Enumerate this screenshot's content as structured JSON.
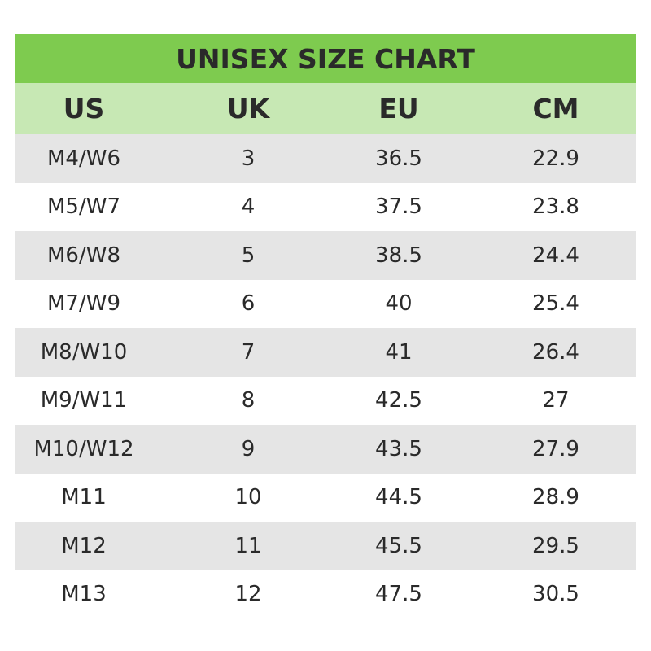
{
  "table": {
    "title": "UNISEX SIZE CHART",
    "columns": [
      "US",
      "UK",
      "EU",
      "CM"
    ],
    "rows": [
      [
        "M4/W6",
        "3",
        "36.5",
        "22.9"
      ],
      [
        "M5/W7",
        "4",
        "37.5",
        "23.8"
      ],
      [
        "M6/W8",
        "5",
        "38.5",
        "24.4"
      ],
      [
        "M7/W9",
        "6",
        "40",
        "25.4"
      ],
      [
        "M8/W10",
        "7",
        "41",
        "26.4"
      ],
      [
        "M9/W11",
        "8",
        "42.5",
        "27"
      ],
      [
        "M10/W12",
        "9",
        "43.5",
        "27.9"
      ],
      [
        "M11",
        "10",
        "44.5",
        "28.9"
      ],
      [
        "M12",
        "11",
        "45.5",
        "29.5"
      ],
      [
        "M13",
        "12",
        "47.5",
        "30.5"
      ]
    ]
  }
}
